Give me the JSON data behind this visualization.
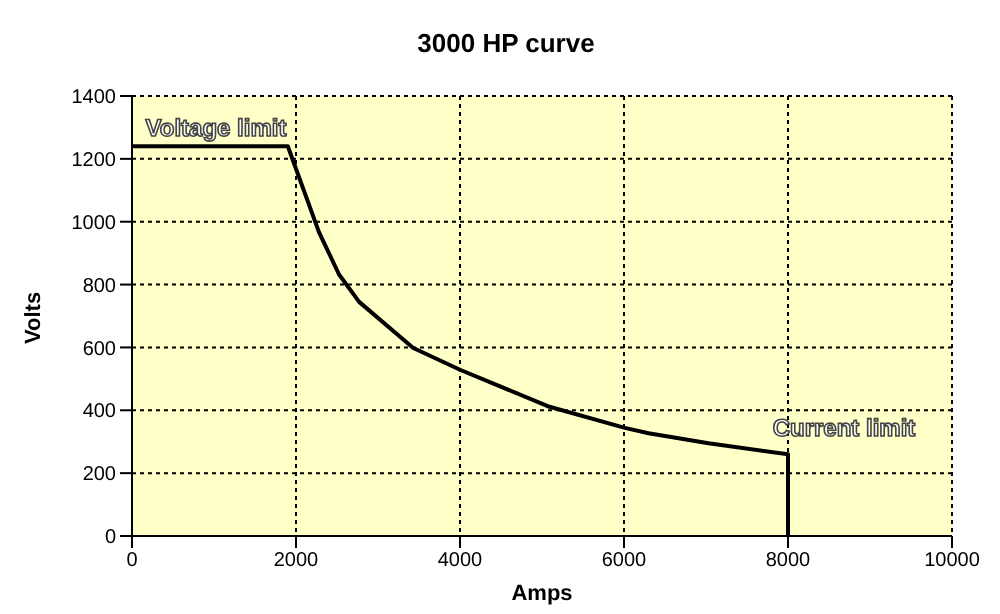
{
  "chart_data": {
    "type": "line",
    "title": "3000 HP curve",
    "xlabel": "Amps",
    "ylabel": "Volts",
    "series": [
      {
        "color": "#000000",
        "x": [
          0,
          1900,
          2280,
          2525,
          2770,
          3430,
          4000,
          5070,
          6010,
          6300,
          7030,
          8000,
          8000
        ],
        "values": [
          1240,
          1240,
          967,
          832,
          745,
          598,
          529,
          413,
          344,
          327,
          295,
          260,
          0
        ]
      }
    ],
    "xlim": [
      0,
      10000
    ],
    "xticks": [
      0,
      2000,
      4000,
      6000,
      8000,
      10000
    ],
    "ylim": [
      0,
      1400
    ],
    "yticks": [
      0,
      200,
      400,
      600,
      800,
      1000,
      1200,
      1400
    ],
    "grid": true,
    "legend": false,
    "marker": "none",
    "line_style": "solid",
    "annotations": [
      {
        "text": "Voltage limit",
        "x": 0,
        "y": 1240
      },
      {
        "text": "Current limit",
        "x": 8000,
        "y": 260
      }
    ]
  }
}
